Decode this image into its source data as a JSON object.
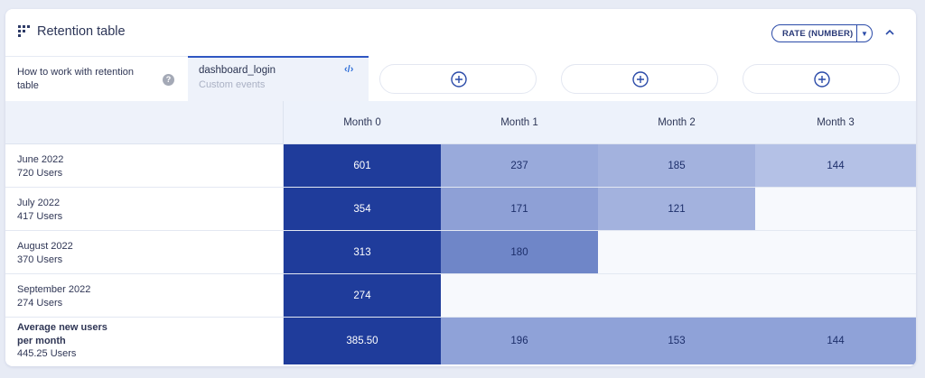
{
  "header": {
    "title": "Retention table",
    "rate_label": "RATE (NUMBER)",
    "grid_icon": "grid-dots-icon",
    "caret_icon": "caret-down-icon",
    "collapse_icon": "chevron-up-icon"
  },
  "tabs": {
    "info_text": "How to work with retention table",
    "help_glyph": "?",
    "active_name": "dashboard_login",
    "active_sub": "Custom events",
    "code_glyph": "‹/›"
  },
  "table": {
    "columns": [
      "Month 0",
      "Month 1",
      "Month 2",
      "Month 3"
    ],
    "rows": [
      {
        "label": "June 2022",
        "users": "720 Users",
        "values": [
          "601",
          "237",
          "185",
          "144"
        ]
      },
      {
        "label": "July 2022",
        "users": "417 Users",
        "values": [
          "354",
          "171",
          "121",
          ""
        ]
      },
      {
        "label": "August 2022",
        "users": "370 Users",
        "values": [
          "313",
          "180",
          "",
          ""
        ]
      },
      {
        "label": "September 2022",
        "users": "274 Users",
        "values": [
          "274",
          "",
          "",
          ""
        ]
      }
    ],
    "average": {
      "label_line1": "Average new users",
      "label_line2": "per month",
      "users": "445.25 Users",
      "values": [
        "385.50",
        "196",
        "153",
        "144"
      ]
    }
  },
  "colors": {
    "strong": "#1f3c9b",
    "accent": "#2f56c2",
    "background": "#e7ebf5"
  }
}
